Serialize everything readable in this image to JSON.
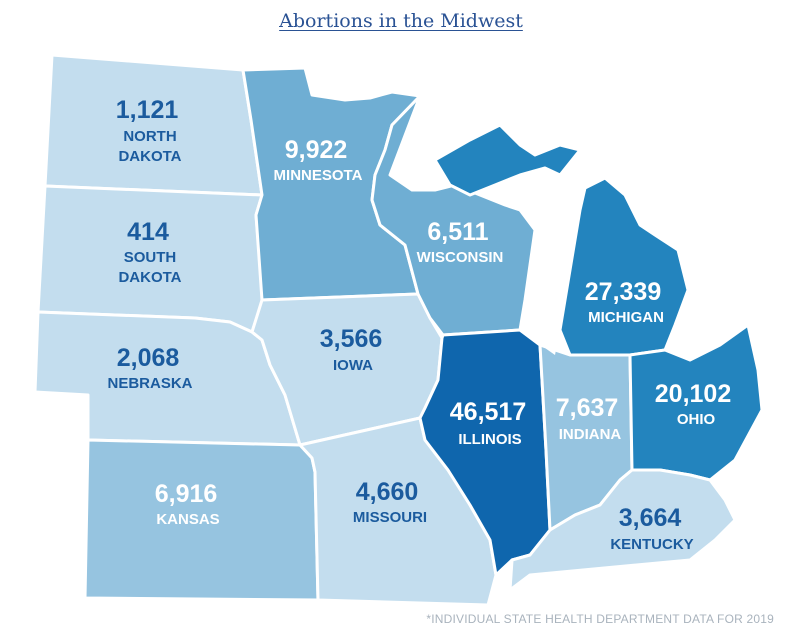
{
  "title": "Abortions in the Midwest",
  "footnote": "*INDIVIDUAL STATE HEALTH DEPARTMENT DATA FOR 2019",
  "colors": {
    "lightest": "#c3ddee",
    "light": "#96c4e0",
    "medium": "#6faed3",
    "dark": "#2384be",
    "darkest": "#0f66ad",
    "label_dark": "#1b5b9e",
    "label_light": "#ffffff"
  },
  "states": [
    {
      "id": "north-dakota",
      "name_lines": [
        "NORTH",
        "DAKOTA"
      ],
      "value": "1,121"
    },
    {
      "id": "south-dakota",
      "name_lines": [
        "SOUTH",
        "DAKOTA"
      ],
      "value": "414"
    },
    {
      "id": "nebraska",
      "name_lines": [
        "NEBRASKA"
      ],
      "value": "2,068"
    },
    {
      "id": "kansas",
      "name_lines": [
        "KANSAS"
      ],
      "value": "6,916"
    },
    {
      "id": "minnesota",
      "name_lines": [
        "MINNESOTA"
      ],
      "value": "9,922"
    },
    {
      "id": "iowa",
      "name_lines": [
        "IOWA"
      ],
      "value": "3,566"
    },
    {
      "id": "missouri",
      "name_lines": [
        "MISSOURI"
      ],
      "value": "4,660"
    },
    {
      "id": "wisconsin",
      "name_lines": [
        "WISCONSIN"
      ],
      "value": "6,511"
    },
    {
      "id": "illinois",
      "name_lines": [
        "ILLINOIS"
      ],
      "value": "46,517"
    },
    {
      "id": "michigan",
      "name_lines": [
        "MICHIGAN"
      ],
      "value": "27,339"
    },
    {
      "id": "indiana",
      "name_lines": [
        "INDIANA"
      ],
      "value": "7,637"
    },
    {
      "id": "ohio",
      "name_lines": [
        "OHIO"
      ],
      "value": "20,102"
    },
    {
      "id": "kentucky",
      "name_lines": [
        "KENTUCKY"
      ],
      "value": "3,664"
    }
  ]
}
